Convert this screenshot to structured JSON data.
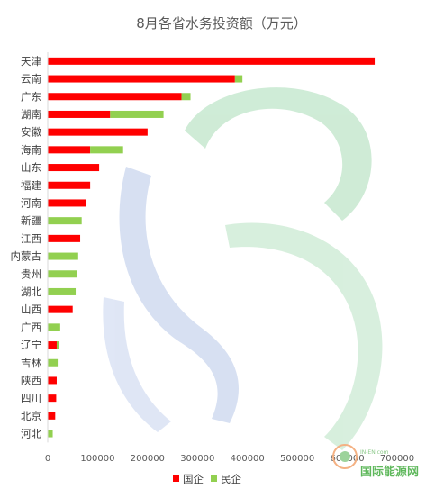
{
  "chart_data": {
    "type": "bar",
    "orientation": "horizontal",
    "stacked": true,
    "title": "8月各省水务投资额（万元）",
    "categories": [
      "天津",
      "云南",
      "广东",
      "湖南",
      "安徽",
      "海南",
      "山东",
      "福建",
      "河南",
      "新疆",
      "江西",
      "内蒙古",
      "贵州",
      "湖北",
      "山西",
      "广西",
      "辽宁",
      "吉林",
      "陕西",
      "四川",
      "北京",
      "河北"
    ],
    "series": [
      {
        "name": "国企",
        "color": "#ff0000",
        "values": [
          655000,
          375000,
          268000,
          125000,
          200000,
          85000,
          103000,
          85000,
          77000,
          0,
          65000,
          0,
          0,
          0,
          50000,
          0,
          18000,
          0,
          18000,
          17000,
          15000,
          0
        ]
      },
      {
        "name": "民企",
        "color": "#92d050",
        "values": [
          0,
          15000,
          18000,
          107000,
          0,
          66000,
          0,
          0,
          0,
          68000,
          0,
          61000,
          58000,
          56000,
          0,
          25000,
          5000,
          20000,
          0,
          0,
          0,
          10000
        ]
      }
    ],
    "xlim": [
      0,
      700000
    ],
    "xticks": [
      0,
      100000,
      200000,
      300000,
      400000,
      500000,
      600000,
      700000
    ],
    "grid": false,
    "legend_position": "bottom"
  },
  "watermark": {
    "text": "国际能源网",
    "url_text": "IN-EN.com"
  }
}
